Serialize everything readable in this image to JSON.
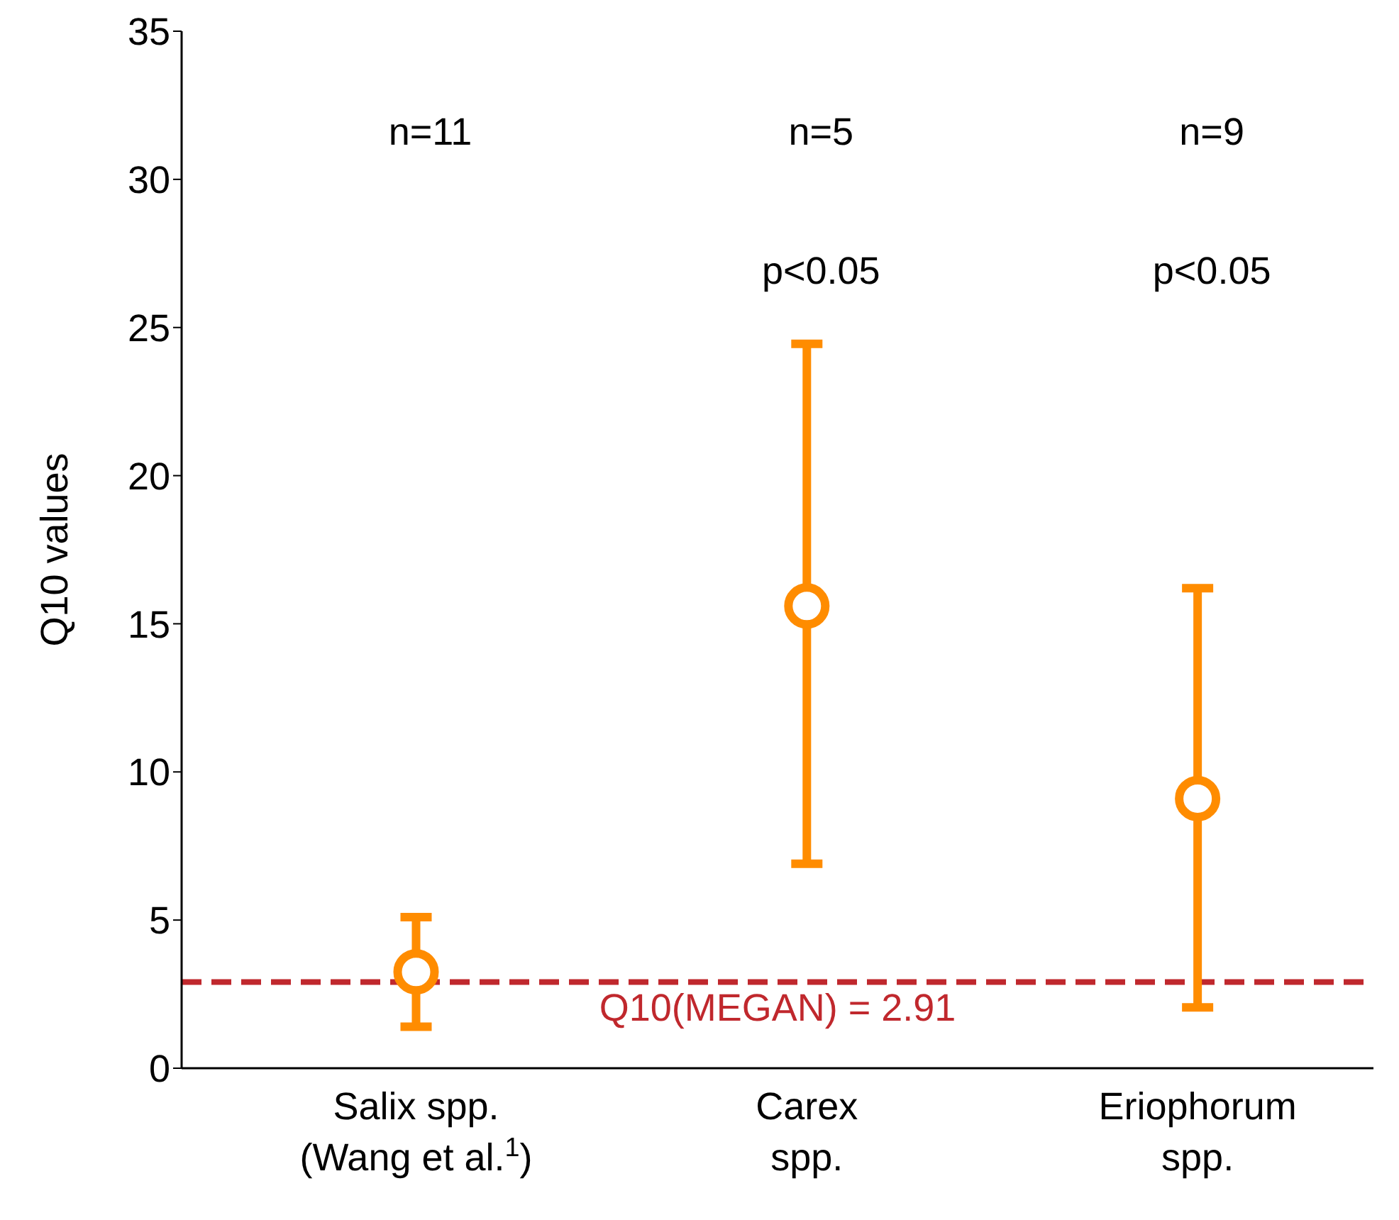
{
  "chart_data": {
    "type": "scatter",
    "ylabel": "Q10 values",
    "categories": [
      "Salix spp.\n(Wang et al.$^{1}$)",
      "Carex\nspp.",
      "Eriophorum\nspp."
    ],
    "series": [
      {
        "color": "#ff8c00",
        "values": [
          3.25,
          15.6,
          9.1
        ],
        "errors": [
          [
            1.4,
            5.1
          ],
          [
            6.9,
            24.45
          ],
          [
            2.05,
            16.2
          ]
        ]
      }
    ],
    "marker": "circle",
    "ylim": [
      0,
      35
    ],
    "yticks": [
      0,
      5,
      10,
      15,
      20,
      25,
      30,
      35
    ],
    "ref_lines": [
      {
        "axis": "y",
        "value": 2.91,
        "label": "Q10(MEGAN) = 2.91",
        "color": "#c0282d",
        "line_style": "dashed"
      }
    ],
    "annotations": [
      "n=11",
      "n=5",
      "n=9",
      "p<0.05",
      "p<0.05"
    ]
  }
}
